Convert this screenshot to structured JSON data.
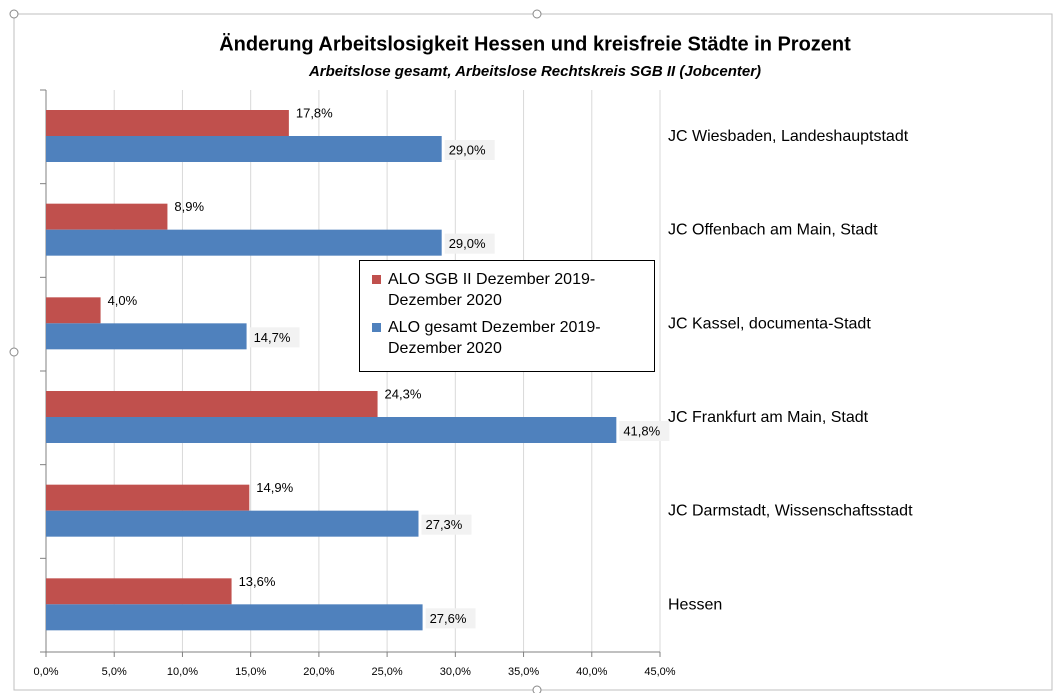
{
  "chart_data": {
    "type": "barh",
    "title": "Änderung Arbeitslosigkeit Hessen und kreisfreie Städte in Prozent",
    "subtitle": "Arbeitslose gesamt, Arbeitslose Rechtskreis SGB II (Jobcenter)",
    "categories": [
      "JC Wiesbaden, Landeshauptstadt",
      "JC Offenbach am Main, Stadt",
      "JC Kassel, documenta-Stadt",
      "JC Frankfurt am Main, Stadt",
      "JC Darmstadt, Wissenschaftsstadt",
      "Hessen"
    ],
    "series": [
      {
        "name": "ALO SGB II Dezember 2019-Dezember 2020",
        "color": "#c0504d",
        "values": [
          17.8,
          8.9,
          4.0,
          24.3,
          14.9,
          13.6
        ],
        "value_labels": [
          "17,8%",
          "8,9%",
          "4,0%",
          "24,3%",
          "14,9%",
          "13,6%"
        ]
      },
      {
        "name": "ALO gesamt Dezember 2019-Dezember 2020",
        "color": "#4f81bd",
        "values": [
          29.0,
          29.0,
          14.7,
          41.8,
          27.3,
          27.6
        ],
        "value_labels": [
          "29,0%",
          "29,0%",
          "14,7%",
          "41,8%",
          "27,3%",
          "27,6%"
        ]
      }
    ],
    "xlim": [
      0,
      45
    ],
    "xticks": [
      {
        "value": 0,
        "label": "0,0%"
      },
      {
        "value": 5,
        "label": "5,0%"
      },
      {
        "value": 10,
        "label": "10,0%"
      },
      {
        "value": 15,
        "label": "15,0%"
      },
      {
        "value": 20,
        "label": "20,0%"
      },
      {
        "value": 25,
        "label": "25,0%"
      },
      {
        "value": 30,
        "label": "30,0%"
      },
      {
        "value": 35,
        "label": "35,0%"
      },
      {
        "value": 40,
        "label": "40,0%"
      },
      {
        "value": 45,
        "label": "45,0%"
      }
    ],
    "grid": true,
    "legend": "center"
  }
}
